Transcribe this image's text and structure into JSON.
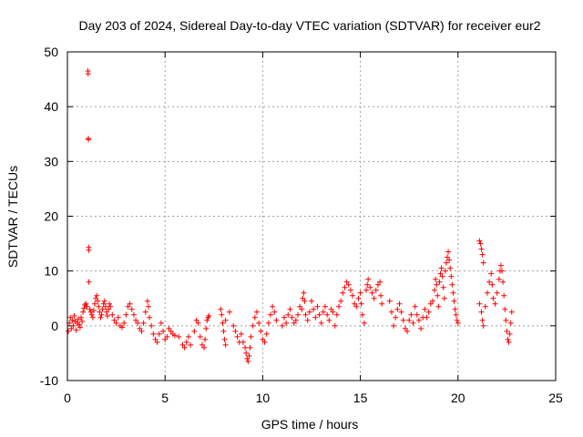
{
  "chart_data": {
    "type": "scatter",
    "title": "Day 203 of 2024, Sidereal Day-to-day VTEC variation (SDTVAR) for receiver eur2",
    "xlabel": "GPS time / hours",
    "ylabel": "SDTVAR / TECUs",
    "xlim": [
      0,
      25
    ],
    "ylim": [
      -10,
      50
    ],
    "xticks": [
      0,
      5,
      10,
      15,
      20,
      25
    ],
    "yticks": [
      -10,
      0,
      10,
      20,
      30,
      40,
      50
    ],
    "grid": true,
    "marker": "+",
    "series": [
      {
        "name": "SDTVAR",
        "color": "#ff0000",
        "points": [
          [
            0.05,
            -1.0
          ],
          [
            0.1,
            0.5
          ],
          [
            0.15,
            1.5
          ],
          [
            0.2,
            -0.5
          ],
          [
            0.25,
            1.0
          ],
          [
            0.3,
            0.0
          ],
          [
            0.35,
            1.8
          ],
          [
            0.4,
            0.8
          ],
          [
            0.45,
            -0.8
          ],
          [
            0.5,
            0.5
          ],
          [
            0.55,
            1.2
          ],
          [
            0.6,
            0.2
          ],
          [
            0.65,
            -0.3
          ],
          [
            0.7,
            1.5
          ],
          [
            0.75,
            0.8
          ],
          [
            0.8,
            2.5
          ],
          [
            0.85,
            3.2
          ],
          [
            0.9,
            3.8
          ],
          [
            0.95,
            4.0
          ],
          [
            1.0,
            3.5
          ],
          [
            1.05,
            46.5
          ],
          [
            1.06,
            46.0
          ],
          [
            1.07,
            34.2
          ],
          [
            1.08,
            34.0
          ],
          [
            1.09,
            14.3
          ],
          [
            1.1,
            13.8
          ],
          [
            1.1,
            8.0
          ],
          [
            1.15,
            3.0
          ],
          [
            1.2,
            2.5
          ],
          [
            1.25,
            2.0
          ],
          [
            1.3,
            1.5
          ],
          [
            1.35,
            2.8
          ],
          [
            1.4,
            4.0
          ],
          [
            1.45,
            5.0
          ],
          [
            1.5,
            5.5
          ],
          [
            1.55,
            4.5
          ],
          [
            1.6,
            3.5
          ],
          [
            1.65,
            2.5
          ],
          [
            1.7,
            1.5
          ],
          [
            1.75,
            2.0
          ],
          [
            1.8,
            3.0
          ],
          [
            1.85,
            4.0
          ],
          [
            1.9,
            4.5
          ],
          [
            1.95,
            3.5
          ],
          [
            2.0,
            2.5
          ],
          [
            2.05,
            1.8
          ],
          [
            2.1,
            3.0
          ],
          [
            2.15,
            4.0
          ],
          [
            2.2,
            3.5
          ],
          [
            2.3,
            2.0
          ],
          [
            2.4,
            1.0
          ],
          [
            2.5,
            0.5
          ],
          [
            2.6,
            1.5
          ],
          [
            2.7,
            0.0
          ],
          [
            2.8,
            -0.3
          ],
          [
            2.9,
            0.5
          ],
          [
            3.0,
            2.0
          ],
          [
            3.1,
            3.5
          ],
          [
            3.2,
            4.0
          ],
          [
            3.3,
            3.0
          ],
          [
            3.4,
            2.0
          ],
          [
            3.5,
            1.0
          ],
          [
            3.6,
            0.5
          ],
          [
            3.7,
            -0.5
          ],
          [
            3.8,
            -1.0
          ],
          [
            3.9,
            0.5
          ],
          [
            4.0,
            2.5
          ],
          [
            4.1,
            4.5
          ],
          [
            4.15,
            3.5
          ],
          [
            4.2,
            1.5
          ],
          [
            4.3,
            0.0
          ],
          [
            4.4,
            -1.5
          ],
          [
            4.5,
            -2.5
          ],
          [
            4.6,
            -3.0
          ],
          [
            4.7,
            -1.5
          ],
          [
            4.8,
            0.5
          ],
          [
            4.9,
            -1.0
          ],
          [
            5.0,
            -2.5
          ],
          [
            5.1,
            -2.0
          ],
          [
            5.2,
            -0.5
          ],
          [
            5.3,
            -1.0
          ],
          [
            5.4,
            -1.5
          ],
          [
            5.5,
            -1.8
          ],
          [
            5.7,
            -2.0
          ],
          [
            5.9,
            -3.5
          ],
          [
            6.0,
            -4.0
          ],
          [
            6.1,
            -3.0
          ],
          [
            6.2,
            -2.0
          ],
          [
            6.3,
            -3.5
          ],
          [
            6.5,
            -1.0
          ],
          [
            6.6,
            1.0
          ],
          [
            6.7,
            0.5
          ],
          [
            6.8,
            -2.0
          ],
          [
            6.9,
            -3.5
          ],
          [
            7.0,
            -4.0
          ],
          [
            7.05,
            -2.5
          ],
          [
            7.1,
            -0.5
          ],
          [
            7.15,
            1.0
          ],
          [
            7.2,
            1.5
          ],
          [
            7.25,
            1.8
          ],
          [
            7.85,
            3.0
          ],
          [
            7.9,
            2.0
          ],
          [
            7.95,
            0.5
          ],
          [
            8.0,
            -1.0
          ],
          [
            8.05,
            -2.5
          ],
          [
            8.1,
            -3.5
          ],
          [
            8.1,
            1.0
          ],
          [
            8.3,
            2.5
          ],
          [
            8.5,
            0.0
          ],
          [
            8.6,
            -1.0
          ],
          [
            8.7,
            -2.0
          ],
          [
            8.8,
            -3.0
          ],
          [
            8.9,
            -1.5
          ],
          [
            9.0,
            -3.0
          ],
          [
            9.1,
            -4.0
          ],
          [
            9.15,
            -5.0
          ],
          [
            9.2,
            -6.0
          ],
          [
            9.25,
            -6.5
          ],
          [
            9.3,
            -5.5
          ],
          [
            9.35,
            -4.0
          ],
          [
            9.4,
            -2.0
          ],
          [
            9.5,
            0.0
          ],
          [
            9.6,
            1.5
          ],
          [
            9.7,
            2.5
          ],
          [
            9.8,
            0.5
          ],
          [
            9.9,
            -1.0
          ],
          [
            10.0,
            -2.5
          ],
          [
            10.1,
            -3.0
          ],
          [
            10.2,
            -1.5
          ],
          [
            10.3,
            0.5
          ],
          [
            10.4,
            2.0
          ],
          [
            10.5,
            3.5
          ],
          [
            10.6,
            2.5
          ],
          [
            10.7,
            1.0
          ],
          [
            11.0,
            0.0
          ],
          [
            11.1,
            1.5
          ],
          [
            11.2,
            0.5
          ],
          [
            11.3,
            2.0
          ],
          [
            11.4,
            3.0
          ],
          [
            11.5,
            1.5
          ],
          [
            11.6,
            0.5
          ],
          [
            11.7,
            1.0
          ],
          [
            11.8,
            2.0
          ],
          [
            11.9,
            3.5
          ],
          [
            12.0,
            3.0
          ],
          [
            12.05,
            5.0
          ],
          [
            12.1,
            6.0
          ],
          [
            12.15,
            4.5
          ],
          [
            12.2,
            2.0
          ],
          [
            12.3,
            1.0
          ],
          [
            12.4,
            2.5
          ],
          [
            12.5,
            4.5
          ],
          [
            12.6,
            3.0
          ],
          [
            12.7,
            1.5
          ],
          [
            12.8,
            3.5
          ],
          [
            12.9,
            2.0
          ],
          [
            13.0,
            0.5
          ],
          [
            13.1,
            2.5
          ],
          [
            13.2,
            3.5
          ],
          [
            13.3,
            2.0
          ],
          [
            13.4,
            1.0
          ],
          [
            13.5,
            3.0
          ],
          [
            13.6,
            2.5
          ],
          [
            13.7,
            0.0
          ],
          [
            13.8,
            2.0
          ],
          [
            13.9,
            3.5
          ],
          [
            14.0,
            4.5
          ],
          [
            14.1,
            6.0
          ],
          [
            14.2,
            7.0
          ],
          [
            14.3,
            8.0
          ],
          [
            14.4,
            7.5
          ],
          [
            14.5,
            6.5
          ],
          [
            14.6,
            5.5
          ],
          [
            14.7,
            4.0
          ],
          [
            14.8,
            3.5
          ],
          [
            14.9,
            5.0
          ],
          [
            15.0,
            6.0
          ],
          [
            15.05,
            4.0
          ],
          [
            15.1,
            2.0
          ],
          [
            15.2,
            0.5
          ],
          [
            15.3,
            6.5
          ],
          [
            15.35,
            7.5
          ],
          [
            15.4,
            8.5
          ],
          [
            15.5,
            7.0
          ],
          [
            15.6,
            6.0
          ],
          [
            15.7,
            5.0
          ],
          [
            15.8,
            6.5
          ],
          [
            15.9,
            7.5
          ],
          [
            16.0,
            8.0
          ],
          [
            16.05,
            5.5
          ],
          [
            16.1,
            4.0
          ],
          [
            16.5,
            4.5
          ],
          [
            16.6,
            2.5
          ],
          [
            16.7,
            0.0
          ],
          [
            16.8,
            1.5
          ],
          [
            16.9,
            3.0
          ],
          [
            17.0,
            4.0
          ],
          [
            17.1,
            2.5
          ],
          [
            17.2,
            1.0
          ],
          [
            17.3,
            -0.5
          ],
          [
            17.4,
            -1.0
          ],
          [
            17.5,
            1.0
          ],
          [
            17.6,
            2.0
          ],
          [
            17.7,
            0.5
          ],
          [
            17.8,
            3.5
          ],
          [
            17.9,
            2.0
          ],
          [
            18.0,
            1.0
          ],
          [
            18.1,
            -0.5
          ],
          [
            18.2,
            1.5
          ],
          [
            18.3,
            3.0
          ],
          [
            18.4,
            1.5
          ],
          [
            18.5,
            2.5
          ],
          [
            18.6,
            4.0
          ],
          [
            18.7,
            4.5
          ],
          [
            18.8,
            6.5
          ],
          [
            18.85,
            8.5
          ],
          [
            18.9,
            7.5
          ],
          [
            18.95,
            5.5
          ],
          [
            19.0,
            3.5
          ],
          [
            19.05,
            8.0
          ],
          [
            19.1,
            9.5
          ],
          [
            19.15,
            10.5
          ],
          [
            19.2,
            9.0
          ],
          [
            19.25,
            7.0
          ],
          [
            19.3,
            5.0
          ],
          [
            19.35,
            10.0
          ],
          [
            19.4,
            11.5
          ],
          [
            19.45,
            12.5
          ],
          [
            19.5,
            13.5
          ],
          [
            19.55,
            12.0
          ],
          [
            19.6,
            10.5
          ],
          [
            19.65,
            9.0
          ],
          [
            19.7,
            7.5
          ],
          [
            19.75,
            6.0
          ],
          [
            19.8,
            4.5
          ],
          [
            19.85,
            3.0
          ],
          [
            19.9,
            2.0
          ],
          [
            19.95,
            1.0
          ],
          [
            20.0,
            0.5
          ],
          [
            21.1,
            15.5
          ],
          [
            21.15,
            15.0
          ],
          [
            21.2,
            14.0
          ],
          [
            21.25,
            13.0
          ],
          [
            21.3,
            11.5
          ],
          [
            21.1,
            4.0
          ],
          [
            21.2,
            2.5
          ],
          [
            21.25,
            1.0
          ],
          [
            21.3,
            0.0
          ],
          [
            21.4,
            3.5
          ],
          [
            21.5,
            6.0
          ],
          [
            21.6,
            8.0
          ],
          [
            21.7,
            9.5
          ],
          [
            21.75,
            7.5
          ],
          [
            21.8,
            5.0
          ],
          [
            21.9,
            4.0
          ],
          [
            22.0,
            6.0
          ],
          [
            22.1,
            8.5
          ],
          [
            22.15,
            10.0
          ],
          [
            22.2,
            11.0
          ],
          [
            22.25,
            10.0
          ],
          [
            22.3,
            8.0
          ],
          [
            22.35,
            5.5
          ],
          [
            22.4,
            3.0
          ],
          [
            22.45,
            1.0
          ],
          [
            22.5,
            -1.0
          ],
          [
            22.55,
            -2.5
          ],
          [
            22.6,
            -3.0
          ],
          [
            22.65,
            -1.5
          ],
          [
            22.7,
            0.5
          ],
          [
            22.75,
            2.5
          ]
        ]
      }
    ]
  }
}
